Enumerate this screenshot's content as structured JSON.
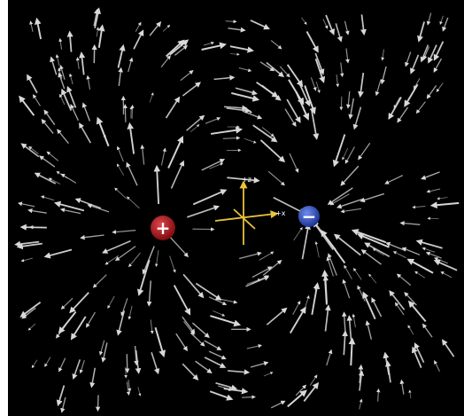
{
  "scene": {
    "background_color": "#000000",
    "arrow_color": "#d9d9d9",
    "axis_color": "#e8c33a",
    "axis_labels": {
      "z": "+z",
      "x": "+x"
    },
    "charges": [
      {
        "name": "positive",
        "sign": "+",
        "color": "#b3141c",
        "icon": "plus-icon",
        "x": -1.0,
        "y": 0.0
      },
      {
        "name": "negative",
        "sign": "−",
        "color": "#2f55d4",
        "icon": "minus-icon",
        "x": 1.0,
        "y": 0.0
      }
    ]
  }
}
